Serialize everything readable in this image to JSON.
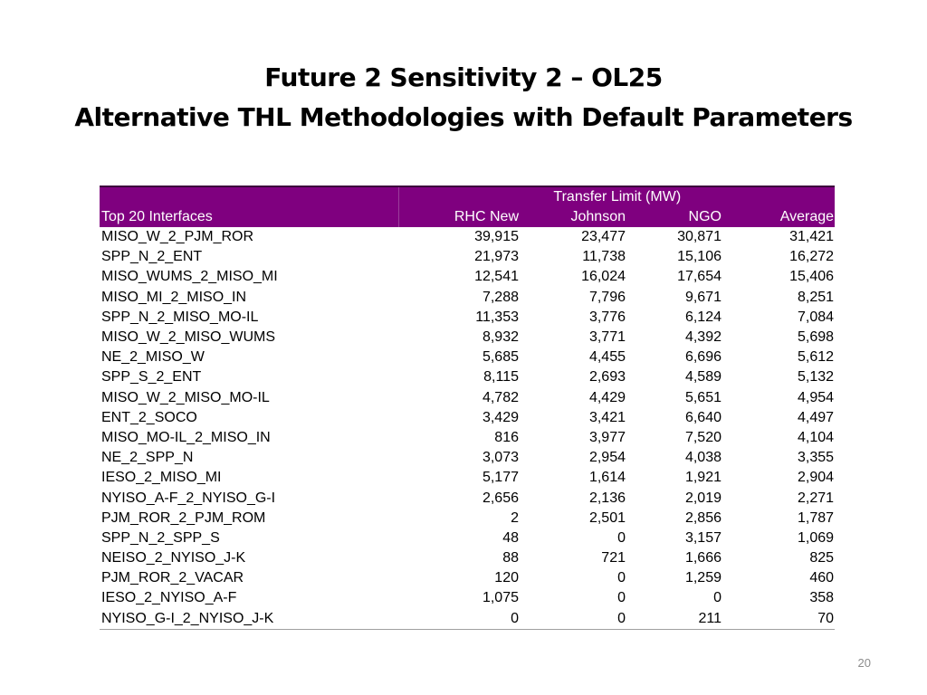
{
  "slide": {
    "title_line1": "Future 2 Sensitivity 2 – OL25",
    "title_line2": "Alternative THL Methodologies with Default Parameters",
    "page_number": "20"
  },
  "table": {
    "group_header": "Transfer Limit (MW)",
    "columns": [
      "Top 20 Interfaces",
      "RHC New",
      "Johnson",
      "NGO",
      "Average"
    ],
    "rows": [
      [
        "MISO_W_2_PJM_ROR",
        "39,915",
        "23,477",
        "30,871",
        "31,421"
      ],
      [
        "SPP_N_2_ENT",
        "21,973",
        "11,738",
        "15,106",
        "16,272"
      ],
      [
        "MISO_WUMS_2_MISO_MI",
        "12,541",
        "16,024",
        "17,654",
        "15,406"
      ],
      [
        "MISO_MI_2_MISO_IN",
        "7,288",
        "7,796",
        "9,671",
        "8,251"
      ],
      [
        "SPP_N_2_MISO_MO-IL",
        "11,353",
        "3,776",
        "6,124",
        "7,084"
      ],
      [
        "MISO_W_2_MISO_WUMS",
        "8,932",
        "3,771",
        "4,392",
        "5,698"
      ],
      [
        "NE_2_MISO_W",
        "5,685",
        "4,455",
        "6,696",
        "5,612"
      ],
      [
        "SPP_S_2_ENT",
        "8,115",
        "2,693",
        "4,589",
        "5,132"
      ],
      [
        "MISO_W_2_MISO_MO-IL",
        "4,782",
        "4,429",
        "5,651",
        "4,954"
      ],
      [
        "ENT_2_SOCO",
        "3,429",
        "3,421",
        "6,640",
        "4,497"
      ],
      [
        "MISO_MO-IL_2_MISO_IN",
        "816",
        "3,977",
        "7,520",
        "4,104"
      ],
      [
        "NE_2_SPP_N",
        "3,073",
        "2,954",
        "4,038",
        "3,355"
      ],
      [
        "IESO_2_MISO_MI",
        "5,177",
        "1,614",
        "1,921",
        "2,904"
      ],
      [
        "NYISO_A-F_2_NYISO_G-I",
        "2,656",
        "2,136",
        "2,019",
        "2,271"
      ],
      [
        "PJM_ROR_2_PJM_ROM",
        "2",
        "2,501",
        "2,856",
        "1,787"
      ],
      [
        "SPP_N_2_SPP_S",
        "48",
        "0",
        "3,157",
        "1,069"
      ],
      [
        "NEISO_2_NYISO_J-K",
        "88",
        "721",
        "1,666",
        "825"
      ],
      [
        "PJM_ROR_2_VACAR",
        "120",
        "0",
        "1,259",
        "460"
      ],
      [
        "IESO_2_NYISO_A-F",
        "1,075",
        "0",
        "0",
        "358"
      ],
      [
        "NYISO_G-I_2_NYISO_J-K",
        "0",
        "0",
        "211",
        "70"
      ]
    ]
  },
  "colors": {
    "header_background": "#7f007f",
    "header_text": "#ffffff",
    "page_number": "#8c8c8c"
  }
}
